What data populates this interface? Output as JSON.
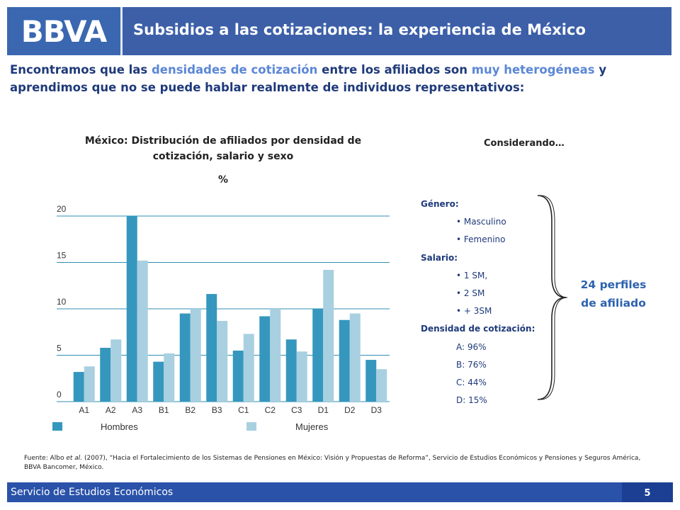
{
  "header": {
    "logo": "BBVA",
    "title": "Subsidios a las cotizaciones: la experiencia de México"
  },
  "intro": {
    "p1": "Encontramos que las ",
    "h1": "densidades de cotización",
    "p2": " entre los afiliados son ",
    "h2": "muy heterogéneas",
    "p3": " y aprendimos que no se puede hablar realmente de individuos representativos:"
  },
  "chart_title": "México: Distribución de afiliados por densidad de cotización, salario y sexo",
  "chart_unit": "%",
  "chart_data": {
    "type": "bar",
    "categories": [
      "A1",
      "A2",
      "A3",
      "B1",
      "B2",
      "B3",
      "C1",
      "C2",
      "C3",
      "D1",
      "D2",
      "D3"
    ],
    "series": [
      {
        "name": "Hombres",
        "values": [
          3.2,
          5.8,
          20.0,
          4.3,
          9.5,
          11.6,
          5.5,
          9.2,
          6.7,
          10.0,
          8.8,
          4.5
        ]
      },
      {
        "name": "Mujeres",
        "values": [
          3.8,
          6.7,
          15.2,
          5.2,
          10.0,
          8.7,
          7.3,
          10.0,
          5.4,
          14.2,
          9.5,
          3.5
        ]
      }
    ],
    "ylim": [
      0,
      20
    ],
    "yticks": [
      0,
      5,
      10,
      15,
      20
    ],
    "grid": true,
    "colors": [
      "#3597bd",
      "#a9d0e0"
    ],
    "legend_position": "bottom"
  },
  "considerando": "Considerando…",
  "profiles": [
    {
      "text": "Género:",
      "kind": "head"
    },
    {
      "text": "• Masculino",
      "kind": "item"
    },
    {
      "text": "• Femenino",
      "kind": "item"
    },
    {
      "text": "Salario:",
      "kind": "head"
    },
    {
      "text": "• 1 SM,",
      "kind": "item"
    },
    {
      "text": "• 2 SM",
      "kind": "item"
    },
    {
      "text": "• + 3SM",
      "kind": "item"
    },
    {
      "text": "Densidad de cotización:",
      "kind": "head"
    },
    {
      "text": "A: 96%",
      "kind": "item"
    },
    {
      "text": "B: 76%",
      "kind": "item"
    },
    {
      "text": "C: 44%",
      "kind": "item"
    },
    {
      "text": "D: 15%",
      "kind": "item"
    }
  ],
  "perfiles": {
    "line1": "24 perfiles",
    "line2": "de afiliado"
  },
  "source": {
    "pre": "Fuente: Albo ",
    "etal": "et al.",
    "post": " (2007), “Hacia el Fortalecimiento de los Sistemas de Pensiones en México: Visión y Propuestas de Reforma”, Servicio de Estudios Económicos y Pensiones y Seguros América, BBVA Bancomer, México."
  },
  "footer": {
    "text": "Servicio de Estudios Económicos",
    "page": "5"
  }
}
